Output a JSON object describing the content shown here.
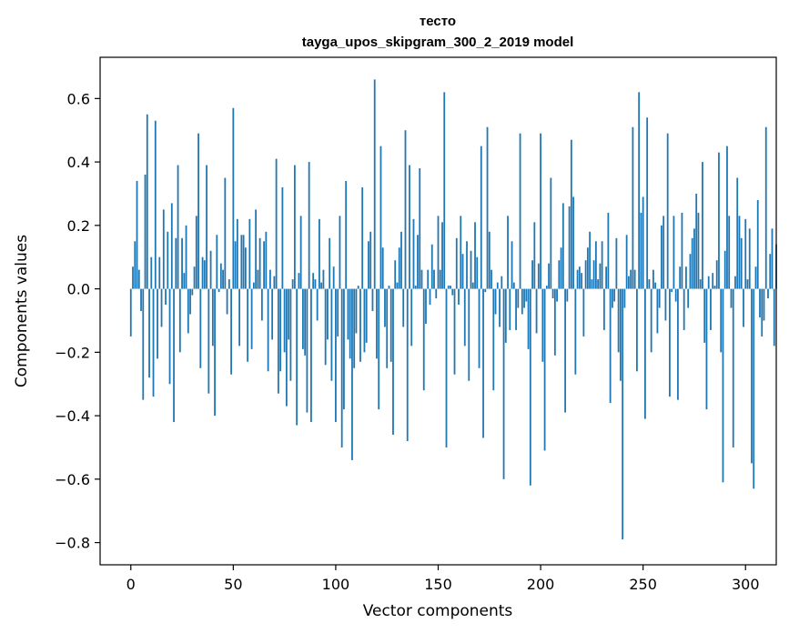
{
  "chart_data": {
    "type": "bar",
    "title_line1": "тесто",
    "title_line2": "tayga_upos_skipgram_300_2_2019 model",
    "xlabel": "Vector components",
    "ylabel": "Components values",
    "xlim": [
      -15,
      315
    ],
    "ylim": [
      -0.87,
      0.73
    ],
    "xticks": [
      0,
      50,
      100,
      150,
      200,
      250,
      300
    ],
    "xtick_labels": [
      "0",
      "50",
      "100",
      "150",
      "200",
      "250",
      "300"
    ],
    "yticks": [
      -0.8,
      -0.6,
      -0.4,
      -0.2,
      0.0,
      0.2,
      0.4,
      0.6
    ],
    "ytick_labels": [
      "−0.8",
      "−0.6",
      "−0.4",
      "−0.2",
      "0.0",
      "0.2",
      "0.4",
      "0.6"
    ],
    "bar_color": "#1f77b4",
    "grid": false,
    "values": [
      -0.15,
      0.07,
      0.15,
      0.34,
      0.06,
      -0.07,
      -0.35,
      0.36,
      0.55,
      -0.28,
      0.1,
      -0.34,
      0.53,
      -0.22,
      0.1,
      -0.12,
      0.25,
      -0.05,
      0.18,
      -0.3,
      0.27,
      -0.42,
      0.16,
      0.39,
      -0.2,
      0.16,
      0.05,
      0.2,
      -0.14,
      -0.08,
      -0.02,
      0.07,
      0.23,
      0.49,
      -0.25,
      0.1,
      0.09,
      0.39,
      -0.33,
      0.12,
      -0.18,
      -0.4,
      0.17,
      -0.01,
      0.08,
      0.06,
      0.35,
      -0.08,
      0.03,
      -0.27,
      0.57,
      0.15,
      0.22,
      -0.18,
      0.17,
      0.17,
      0.13,
      -0.23,
      0.22,
      -0.19,
      0.02,
      0.25,
      0.06,
      0.16,
      -0.1,
      0.15,
      0.18,
      -0.26,
      0.06,
      -0.16,
      0.04,
      0.41,
      -0.33,
      -0.26,
      0.32,
      -0.2,
      -0.37,
      -0.16,
      -0.29,
      0.03,
      0.39,
      -0.43,
      0.05,
      0.23,
      -0.19,
      -0.21,
      -0.39,
      0.4,
      -0.42,
      0.05,
      0.03,
      -0.1,
      0.22,
      0.02,
      0.06,
      -0.24,
      -0.16,
      0.16,
      -0.29,
      0.07,
      -0.42,
      -0.15,
      0.23,
      -0.5,
      -0.38,
      0.34,
      -0.16,
      -0.22,
      -0.54,
      -0.25,
      -0.14,
      0.01,
      -0.23,
      0.32,
      -0.2,
      -0.17,
      0.15,
      0.18,
      -0.07,
      0.66,
      -0.22,
      -0.38,
      0.45,
      0.13,
      -0.12,
      -0.25,
      0.01,
      -0.23,
      -0.46,
      0.09,
      0.02,
      0.13,
      0.18,
      -0.12,
      0.5,
      -0.48,
      0.39,
      -0.18,
      0.22,
      0.01,
      0.17,
      0.38,
      0.06,
      -0.32,
      -0.11,
      0.06,
      -0.05,
      0.14,
      0.06,
      -0.03,
      0.23,
      0.06,
      0.21,
      0.62,
      -0.5,
      0.01,
      0.01,
      -0.02,
      -0.27,
      0.16,
      -0.05,
      0.23,
      0.11,
      -0.18,
      0.15,
      -0.29,
      0.12,
      0.02,
      0.21,
      0.1,
      -0.25,
      0.45,
      -0.47,
      -0.01,
      0.51,
      0.18,
      0.06,
      -0.32,
      -0.08,
      0.02,
      -0.12,
      0.04,
      -0.6,
      -0.17,
      0.23,
      -0.13,
      0.15,
      0.02,
      -0.13,
      -0.06,
      0.49,
      -0.08,
      -0.06,
      -0.04,
      -0.19,
      -0.62,
      0.09,
      0.21,
      -0.14,
      0.08,
      0.49,
      -0.23,
      -0.51,
      0.01,
      0.08,
      0.35,
      -0.03,
      -0.21,
      -0.04,
      0.09,
      0.13,
      0.27,
      -0.39,
      -0.04,
      0.26,
      0.47,
      0.29,
      -0.27,
      0.06,
      0.07,
      0.05,
      -0.15,
      0.09,
      0.13,
      0.18,
      0.03,
      0.09,
      0.15,
      0.03,
      0.08,
      0.15,
      -0.13,
      0.07,
      0.24,
      -0.36,
      -0.06,
      -0.04,
      0.16,
      -0.2,
      -0.29,
      -0.79,
      -0.06,
      0.17,
      0.04,
      0.06,
      0.51,
      0.06,
      -0.26,
      0.62,
      0.24,
      0.29,
      -0.41,
      0.54,
      0.03,
      -0.2,
      0.06,
      0.02,
      -0.14,
      -0.06,
      0.2,
      0.23,
      -0.1,
      0.49,
      -0.34,
      -0.01,
      0.23,
      -0.04,
      -0.35,
      0.07,
      0.24,
      -0.13,
      0.07,
      -0.06,
      0.11,
      0.16,
      0.19,
      0.3,
      0.24,
      0.03,
      0.4,
      -0.17,
      -0.38,
      0.04,
      -0.13,
      0.05,
      0.01,
      0.09,
      0.43,
      -0.2,
      -0.61,
      0.12,
      0.45,
      0.23,
      -0.06,
      -0.5,
      0.04,
      0.35,
      0.23,
      0.16,
      -0.12,
      0.22,
      0.03,
      0.19,
      -0.55,
      -0.63,
      0.07,
      0.28,
      -0.09,
      -0.15,
      -0.1,
      0.51,
      -0.03,
      0.11,
      0.19,
      -0.18,
      0.14
    ]
  }
}
